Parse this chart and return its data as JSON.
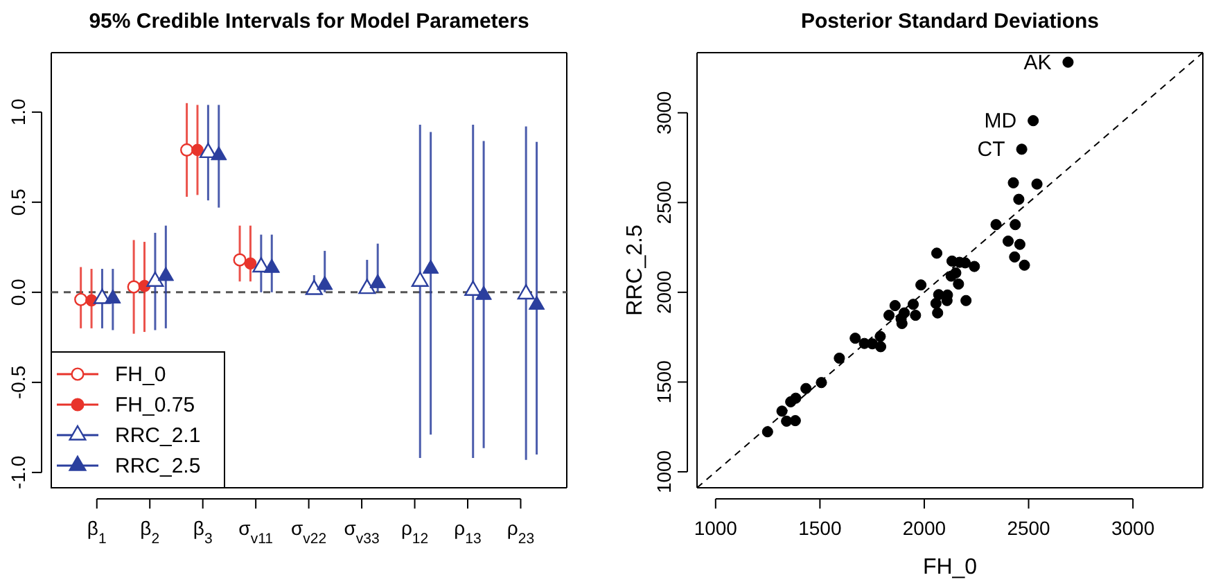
{
  "chart_data": [
    {
      "type": "scatter",
      "title": "95% Credible Intervals for Model Parameters",
      "categories": [
        "β$_{1}$",
        "β$_{2}$",
        "β$_{3}$",
        "σ$_{v11}$",
        "σ$_{v22}$",
        "σ$_{v33}$",
        "ρ$_{12}$",
        "ρ$_{13}$",
        "ρ$_{23}$"
      ],
      "ylim": [
        -1.085,
        1.33
      ],
      "yticks": [
        {
          "value": -1,
          "label": "-1.0"
        },
        {
          "value": -0.5,
          "label": "-0.5"
        },
        {
          "value": 0,
          "label": "0.0"
        },
        {
          "value": 0.5,
          "label": "0.5"
        },
        {
          "value": 1,
          "label": "1.0"
        }
      ],
      "grid": false,
      "legend": "bottom left",
      "ref_lines": [
        {
          "axis": "y",
          "value": 0,
          "line_style": "dashed",
          "color": "#555555"
        }
      ],
      "series": [
        {
          "name": "FH_0",
          "color": "#e8342b",
          "marker": "circle",
          "values": [
            -0.04,
            0.03,
            0.79,
            0.18,
            null,
            null,
            null,
            null,
            null
          ],
          "errors": [
            [
              -0.2,
              0.14
            ],
            [
              -0.23,
              0.29
            ],
            [
              0.53,
              1.05
            ],
            [
              0.06,
              0.37
            ],
            null,
            null,
            null,
            null,
            null
          ]
        },
        {
          "name": "FH_0.75",
          "color": "#e8342b",
          "marker": "circle",
          "values": [
            -0.045,
            0.035,
            0.79,
            0.16,
            null,
            null,
            null,
            null,
            null
          ],
          "errors": [
            [
              -0.2,
              0.13
            ],
            [
              -0.22,
              0.28
            ],
            [
              0.54,
              1.04
            ],
            [
              0.06,
              0.37
            ],
            null,
            null,
            null,
            null,
            null
          ]
        },
        {
          "name": "RRC_2.1",
          "color": "#2b3f9e",
          "marker": "triangle",
          "values": [
            -0.035,
            0.06,
            0.775,
            0.14,
            0.015,
            0.02,
            0.06,
            0.01,
            -0.01
          ],
          "errors": [
            [
              -0.2,
              0.13
            ],
            [
              -0.21,
              0.33
            ],
            [
              0.51,
              1.04
            ],
            [
              0,
              0.32
            ],
            [
              0,
              0.095
            ],
            [
              0,
              0.18
            ],
            [
              -0.92,
              0.93
            ],
            [
              -0.92,
              0.93
            ],
            [
              -0.93,
              0.92
            ]
          ]
        },
        {
          "name": "RRC_2.5",
          "color": "#2b3f9e",
          "marker": "triangle",
          "values": [
            -0.035,
            0.09,
            0.76,
            0.135,
            0.04,
            0.05,
            0.13,
            -0.015,
            -0.07
          ],
          "errors": [
            [
              -0.21,
              0.13
            ],
            [
              -0.2,
              0.37
            ],
            [
              0.47,
              1.04
            ],
            [
              0,
              0.32
            ],
            [
              0,
              0.23
            ],
            [
              0,
              0.27
            ],
            [
              -0.79,
              0.89
            ],
            [
              -0.865,
              0.84
            ],
            [
              -0.9,
              0.835
            ]
          ]
        }
      ]
    },
    {
      "type": "scatter",
      "title": "Posterior Standard Deviations",
      "xlabel": "FH_0",
      "ylabel": "RRC_2.5",
      "xlim": [
        911,
        3335
      ],
      "ylim": [
        911,
        3335
      ],
      "xticks": [
        1000,
        1500,
        2000,
        2500,
        3000
      ],
      "yticks": [
        1000,
        1500,
        2000,
        2500,
        3000
      ],
      "grid": false,
      "legend": false,
      "annotations": [
        {
          "text": "AK",
          "x": 2689,
          "y": 3282
        },
        {
          "text": "MD",
          "x": 2522,
          "y": 2956
        },
        {
          "text": "CT",
          "x": 2467,
          "y": 2797
        }
      ],
      "series": [
        {
          "type": "line",
          "color": "#000000",
          "line_style": "dashed",
          "marker": "none",
          "x": [
            911,
            3335
          ],
          "values": [
            911,
            3335
          ]
        },
        {
          "color": "#000000",
          "marker": "circle",
          "x": [
            2689,
            2522,
            2467,
            2427,
            2540,
            2453,
            2344,
            2436,
            2402,
            2458,
            2433,
            2480,
            2060,
            2133,
            2169,
            2196,
            2240,
            2151,
            2129,
            2164,
            1984,
            2069,
            2111,
            2056,
            2109,
            2200,
            2064,
            1947,
            1860,
            1831,
            1904,
            1958,
            1889,
            1893,
            1789,
            1669,
            1713,
            1751,
            1791,
            1593,
            1507,
            1433,
            1384,
            1360,
            1318,
            1340,
            1382,
            1249
          ],
          "values": [
            3282,
            2956,
            2797,
            2610,
            2603,
            2518,
            2377,
            2377,
            2285,
            2267,
            2197,
            2151,
            2218,
            2174,
            2167,
            2164,
            2144,
            2108,
            2090,
            2046,
            2041,
            1987,
            1985,
            1938,
            1954,
            1954,
            1885,
            1933,
            1926,
            1872,
            1885,
            1872,
            1851,
            1826,
            1754,
            1744,
            1715,
            1713,
            1697,
            1633,
            1497,
            1464,
            1410,
            1390,
            1338,
            1282,
            1285,
            1223
          ]
        }
      ]
    }
  ]
}
